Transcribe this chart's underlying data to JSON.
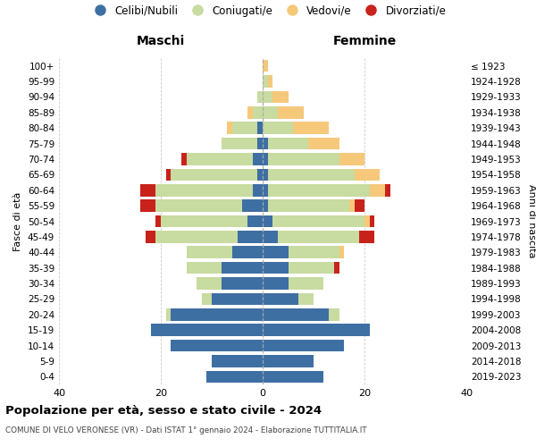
{
  "age_groups": [
    "0-4",
    "5-9",
    "10-14",
    "15-19",
    "20-24",
    "25-29",
    "30-34",
    "35-39",
    "40-44",
    "45-49",
    "50-54",
    "55-59",
    "60-64",
    "65-69",
    "70-74",
    "75-79",
    "80-84",
    "85-89",
    "90-94",
    "95-99",
    "100+"
  ],
  "birth_years": [
    "2019-2023",
    "2014-2018",
    "2009-2013",
    "2004-2008",
    "1999-2003",
    "1994-1998",
    "1989-1993",
    "1984-1988",
    "1979-1983",
    "1974-1978",
    "1969-1973",
    "1964-1968",
    "1959-1963",
    "1954-1958",
    "1949-1953",
    "1944-1948",
    "1939-1943",
    "1934-1938",
    "1929-1933",
    "1924-1928",
    "≤ 1923"
  ],
  "colors": {
    "celibi": "#3e6fa3",
    "coniugati": "#c8dba0",
    "vedovi": "#f5c87a",
    "divorziati": "#c8221c"
  },
  "male": {
    "celibi": [
      11,
      10,
      18,
      22,
      18,
      10,
      8,
      8,
      6,
      5,
      3,
      4,
      2,
      1,
      2,
      1,
      1,
      0,
      0,
      0,
      0
    ],
    "coniugati": [
      0,
      0,
      0,
      0,
      1,
      2,
      5,
      7,
      9,
      16,
      17,
      17,
      19,
      17,
      13,
      7,
      5,
      2,
      1,
      0,
      0
    ],
    "vedovi": [
      0,
      0,
      0,
      0,
      0,
      0,
      0,
      0,
      0,
      0,
      0,
      0,
      0,
      0,
      0,
      0,
      1,
      1,
      0,
      0,
      0
    ],
    "divorziati": [
      0,
      0,
      0,
      0,
      0,
      0,
      0,
      0,
      0,
      2,
      1,
      3,
      3,
      1,
      1,
      0,
      0,
      0,
      0,
      0,
      0
    ]
  },
  "female": {
    "celibi": [
      12,
      10,
      16,
      21,
      13,
      7,
      5,
      5,
      5,
      3,
      2,
      1,
      1,
      1,
      1,
      1,
      0,
      0,
      0,
      0,
      0
    ],
    "coniugati": [
      0,
      0,
      0,
      0,
      2,
      3,
      7,
      9,
      10,
      16,
      18,
      16,
      20,
      17,
      14,
      8,
      6,
      3,
      2,
      1,
      0
    ],
    "vedovi": [
      0,
      0,
      0,
      0,
      0,
      0,
      0,
      0,
      1,
      0,
      1,
      1,
      3,
      5,
      5,
      6,
      7,
      5,
      3,
      1,
      1
    ],
    "divorziati": [
      0,
      0,
      0,
      0,
      0,
      0,
      0,
      1,
      0,
      3,
      1,
      2,
      1,
      0,
      0,
      0,
      0,
      0,
      0,
      0,
      0
    ]
  },
  "xlim": 40,
  "title": "Popolazione per età, sesso e stato civile - 2024",
  "subtitle": "COMUNE DI VELO VERONESE (VR) - Dati ISTAT 1° gennaio 2024 - Elaborazione TUTTITALIA.IT",
  "ylabel_left": "Fasce di età",
  "ylabel_right": "Anni di nascita",
  "legend_labels": [
    "Celibi/Nubili",
    "Coniugati/e",
    "Vedovi/e",
    "Divorziati/e"
  ],
  "background_color": "#ffffff",
  "grid_color": "#cccccc"
}
